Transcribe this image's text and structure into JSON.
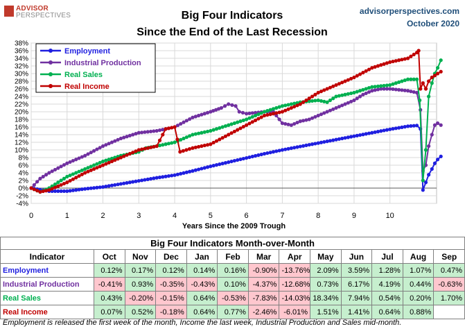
{
  "logo": {
    "line1": "ADVISOR",
    "line2": "PERSPECTIVES"
  },
  "header": {
    "title_line1": "Big Four Indicators",
    "title_line2": "Since the End of the Last Recession",
    "site": "advisorperspectives.com",
    "date": "October 2020"
  },
  "colors": {
    "employment": "#1f1fe0",
    "industrial_production": "#7030a0",
    "real_sales": "#00b050",
    "real_income": "#c00000"
  },
  "chart_data": {
    "type": "line",
    "title": "Big Four Indicators Since the End of the Last Recession",
    "xlabel": "Years Since the 2009 Trough",
    "ylabel": "",
    "xlim": [
      0,
      11.3
    ],
    "ylim": [
      -4,
      38
    ],
    "x_ticks": [
      "0",
      "1",
      "2",
      "3",
      "4",
      "5",
      "6",
      "7",
      "8",
      "9",
      "10"
    ],
    "y_ticks": [
      "-4%",
      "-2%",
      "0%",
      "2%",
      "4%",
      "6%",
      "8%",
      "10%",
      "12%",
      "14%",
      "16%",
      "18%",
      "20%",
      "22%",
      "24%",
      "26%",
      "28%",
      "30%",
      "32%",
      "34%",
      "36%",
      "38%"
    ],
    "legend_position": "top-left",
    "series": [
      {
        "name": "Employment",
        "points": [
          [
            0,
            0
          ],
          [
            0.5,
            -0.8
          ],
          [
            1.0,
            -0.8
          ],
          [
            1.25,
            -0.5
          ],
          [
            1.5,
            -0.2
          ],
          [
            2,
            0.3
          ],
          [
            2.5,
            1.1
          ],
          [
            3,
            1.9
          ],
          [
            3.5,
            2.7
          ],
          [
            4,
            3.4
          ],
          [
            4.5,
            4.5
          ],
          [
            5,
            5.7
          ],
          [
            5.5,
            6.8
          ],
          [
            6,
            7.9
          ],
          [
            6.5,
            9.0
          ],
          [
            7,
            10.0
          ],
          [
            7.5,
            10.9
          ],
          [
            8,
            11.8
          ],
          [
            8.5,
            12.7
          ],
          [
            9,
            13.6
          ],
          [
            9.5,
            14.5
          ],
          [
            10,
            15.4
          ],
          [
            10.5,
            16.2
          ],
          [
            10.75,
            16.4
          ],
          [
            10.85,
            15.5
          ],
          [
            10.92,
            -0.5
          ],
          [
            11.0,
            1.5
          ],
          [
            11.08,
            3.5
          ],
          [
            11.17,
            5.0
          ],
          [
            11.25,
            6.5
          ],
          [
            11.33,
            7.5
          ],
          [
            11.42,
            8.3
          ]
        ]
      },
      {
        "name": "Industrial Production",
        "points": [
          [
            0,
            0
          ],
          [
            0.25,
            2.5
          ],
          [
            0.5,
            4
          ],
          [
            1,
            6.5
          ],
          [
            1.5,
            8.5
          ],
          [
            2,
            11
          ],
          [
            2.5,
            13
          ],
          [
            3,
            14.5
          ],
          [
            3.5,
            15
          ],
          [
            4,
            16
          ],
          [
            4.5,
            18.5
          ],
          [
            5,
            20
          ],
          [
            5.3,
            21
          ],
          [
            5.5,
            22
          ],
          [
            5.7,
            21.5
          ],
          [
            5.8,
            20
          ],
          [
            6,
            19.5
          ],
          [
            6.5,
            20
          ],
          [
            6.75,
            20
          ],
          [
            7,
            17
          ],
          [
            7.25,
            16.5
          ],
          [
            7.5,
            17.5
          ],
          [
            7.75,
            18
          ],
          [
            8,
            19
          ],
          [
            8.5,
            21
          ],
          [
            9,
            23
          ],
          [
            9.25,
            24.5
          ],
          [
            9.5,
            25.5
          ],
          [
            9.75,
            26
          ],
          [
            10,
            26
          ],
          [
            10.5,
            25.5
          ],
          [
            10.75,
            25
          ],
          [
            10.85,
            20.5
          ],
          [
            10.92,
            4.5
          ],
          [
            11.0,
            6
          ],
          [
            11.08,
            11
          ],
          [
            11.17,
            14
          ],
          [
            11.25,
            16.5
          ],
          [
            11.33,
            17
          ],
          [
            11.42,
            16.5
          ]
        ]
      },
      {
        "name": "Real Sales",
        "points": [
          [
            0,
            0
          ],
          [
            0.25,
            -1
          ],
          [
            0.5,
            0
          ],
          [
            1,
            3
          ],
          [
            1.5,
            5
          ],
          [
            2,
            7
          ],
          [
            2.5,
            8.5
          ],
          [
            3,
            9.5
          ],
          [
            3.2,
            10.5
          ],
          [
            3.5,
            11
          ],
          [
            4,
            12
          ],
          [
            4.5,
            14
          ],
          [
            5,
            15
          ],
          [
            5.5,
            16.5
          ],
          [
            6,
            18
          ],
          [
            6.5,
            20
          ],
          [
            7,
            21.5
          ],
          [
            7.5,
            22.5
          ],
          [
            8,
            23
          ],
          [
            8.25,
            22.5
          ],
          [
            8.5,
            24
          ],
          [
            9,
            25
          ],
          [
            9.5,
            26.5
          ],
          [
            10,
            27
          ],
          [
            10.5,
            28.5
          ],
          [
            10.75,
            28.5
          ],
          [
            10.83,
            23
          ],
          [
            10.92,
            2
          ],
          [
            11.0,
            10
          ],
          [
            11.08,
            24
          ],
          [
            11.17,
            27.5
          ],
          [
            11.25,
            30
          ],
          [
            11.33,
            31.5
          ],
          [
            11.42,
            33.5
          ]
        ]
      },
      {
        "name": "Real Income",
        "points": [
          [
            0,
            0
          ],
          [
            0.25,
            -1
          ],
          [
            0.5,
            -0.5
          ],
          [
            1,
            1.5
          ],
          [
            1.5,
            4
          ],
          [
            2,
            6
          ],
          [
            2.5,
            8
          ],
          [
            3,
            10
          ],
          [
            3.5,
            11
          ],
          [
            3.75,
            15.5
          ],
          [
            4,
            16
          ],
          [
            4.15,
            9.5
          ],
          [
            4.5,
            10.5
          ],
          [
            5,
            11.5
          ],
          [
            5.5,
            14
          ],
          [
            6,
            16.5
          ],
          [
            6.5,
            19
          ],
          [
            7,
            20
          ],
          [
            7.5,
            22
          ],
          [
            8,
            25
          ],
          [
            8.5,
            27
          ],
          [
            9,
            29
          ],
          [
            9.5,
            31.5
          ],
          [
            10,
            33
          ],
          [
            10.5,
            34
          ],
          [
            10.75,
            35.5
          ],
          [
            10.8,
            36
          ],
          [
            10.85,
            26
          ],
          [
            10.92,
            27.5
          ],
          [
            11.0,
            26
          ],
          [
            11.08,
            28
          ],
          [
            11.17,
            29
          ],
          [
            11.25,
            29.5
          ],
          [
            11.33,
            30
          ],
          [
            11.42,
            30.5
          ]
        ]
      }
    ]
  },
  "table": {
    "title": "Big Four Indicators Month-over-Month",
    "indicator_header": "Indicator",
    "months": [
      "Oct",
      "Nov",
      "Dec",
      "Jan",
      "Feb",
      "Mar",
      "Apr",
      "May",
      "Jun",
      "Jul",
      "Aug",
      "Sep"
    ],
    "rows": [
      {
        "name": "Employment",
        "values": [
          "0.12%",
          "0.17%",
          "0.12%",
          "0.14%",
          "0.16%",
          "-0.90%",
          "-13.76%",
          "2.09%",
          "3.59%",
          "1.28%",
          "1.07%",
          "0.47%"
        ]
      },
      {
        "name": "Industrial Production",
        "values": [
          "-0.41%",
          "0.93%",
          "-0.35%",
          "-0.43%",
          "0.10%",
          "-4.37%",
          "-12.68%",
          "0.73%",
          "6.17%",
          "4.19%",
          "0.44%",
          "-0.63%"
        ]
      },
      {
        "name": "Real Sales",
        "values": [
          "0.43%",
          "-0.20%",
          "-0.15%",
          "0.64%",
          "-0.53%",
          "-7.83%",
          "-14.03%",
          "18.34%",
          "7.94%",
          "0.54%",
          "0.20%",
          "1.70%"
        ]
      },
      {
        "name": "Real Income",
        "values": [
          "0.07%",
          "0.52%",
          "-0.18%",
          "0.64%",
          "0.77%",
          "-2.46%",
          "-6.01%",
          "1.51%",
          "1.41%",
          "0.64%",
          "0.88%",
          ""
        ]
      }
    ]
  },
  "footnote": "Employment is released the first week of the month, Income the last week, Industrial Production and Sales mid-month."
}
